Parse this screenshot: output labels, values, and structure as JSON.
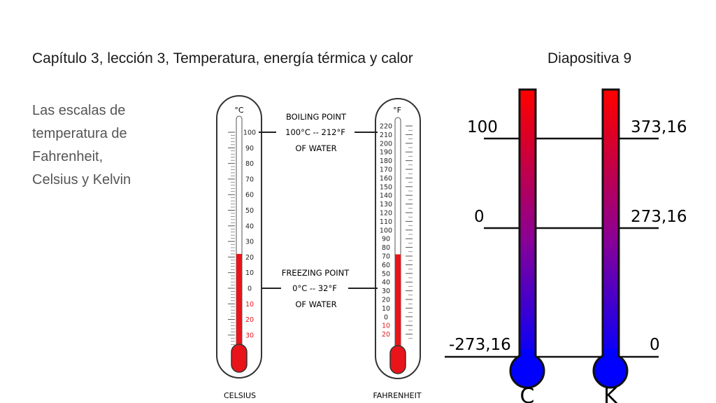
{
  "header": {
    "title": "Capítulo 3, lección 3, Temperatura, energía térmica y calor",
    "slide_label": "Diapositiva 9"
  },
  "subtitle_lines": [
    "Las escalas de",
    "temperatura de",
    "Fahrenheit,",
    "Celsius y Kelvin"
  ],
  "left_diagram": {
    "celsius": {
      "unit": "°C",
      "name": "CELSIUS",
      "labels": [
        "100",
        "90",
        "80",
        "70",
        "60",
        "50",
        "40",
        "30",
        "20",
        "10",
        "0",
        "10",
        "20",
        "30"
      ],
      "negative_from_index": 11,
      "fill_level": 22
    },
    "fahrenheit": {
      "unit": "°F",
      "name": "FAHRENHEIT",
      "labels": [
        "220",
        "210",
        "200",
        "190",
        "180",
        "170",
        "160",
        "150",
        "140",
        "130",
        "120",
        "110",
        "100",
        "90",
        "80",
        "70",
        "60",
        "50",
        "40",
        "30",
        "20",
        "10",
        "0",
        "10",
        "20"
      ],
      "negative_from_index": 23,
      "fill_level": 72
    },
    "boiling": {
      "line1": "BOILING POINT",
      "line2": "100°C -- 212°F",
      "line3": "OF WATER"
    },
    "freezing": {
      "line1": "FREEZING POINT",
      "line2": "0°C -- 32°F",
      "line3": "OF WATER"
    },
    "colors": {
      "mercury": "#e8141a",
      "outline": "#333333"
    }
  },
  "right_diagram": {
    "left_tube_label": "C",
    "right_tube_label": "K",
    "levels": [
      {
        "celsius": "100",
        "kelvin": "373,16"
      },
      {
        "celsius": "0",
        "kelvin": "273,16"
      },
      {
        "celsius": "-273,16",
        "kelvin": "0"
      }
    ],
    "colors": {
      "top": "#ff0000",
      "bottom": "#0000ff"
    }
  }
}
